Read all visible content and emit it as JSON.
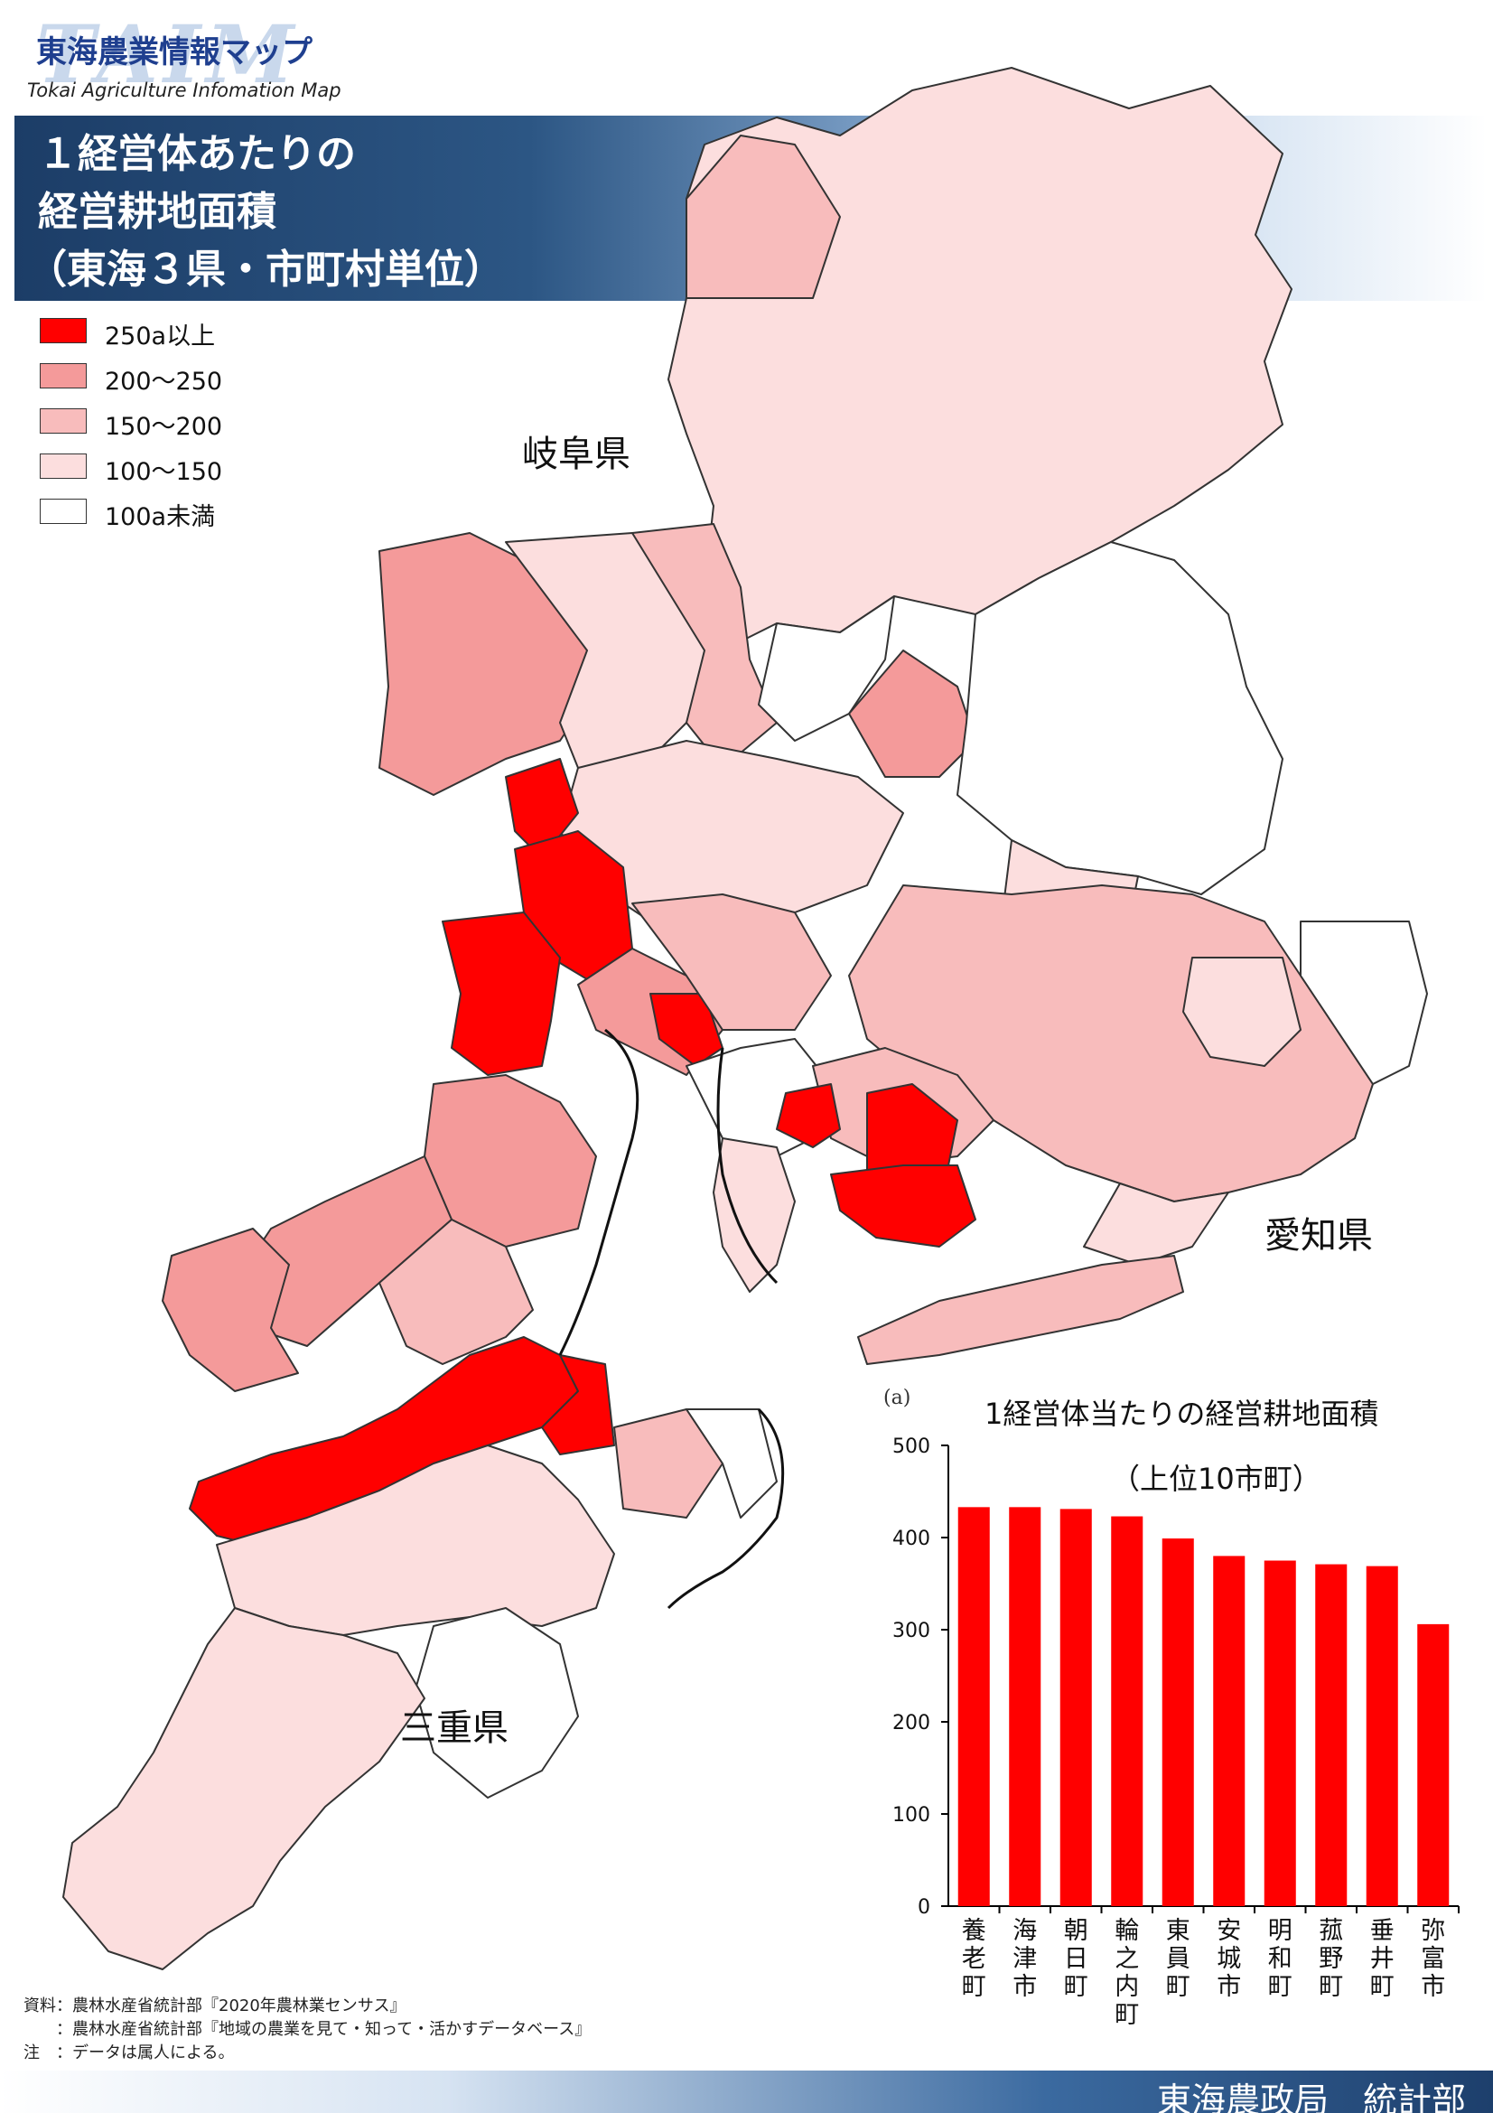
{
  "header": {
    "logo_text": "TAIM",
    "logo_title": "東海農業情報マップ",
    "logo_subtitle": "Tokai Agriculture Infomation Map",
    "title_lines": [
      "１経営体あたりの",
      "経営耕地面積",
      "（東海３県・市町村単位）"
    ]
  },
  "legend": {
    "items": [
      {
        "label": "250a以上",
        "color": "#ff0000"
      },
      {
        "label": "200～250",
        "color": "#f49a9a"
      },
      {
        "label": "150～200",
        "color": "#f8bcbc"
      },
      {
        "label": "100～150",
        "color": "#fcdede"
      },
      {
        "label": "100a未満",
        "color": "#ffffff"
      }
    ]
  },
  "map": {
    "prefectures": [
      "岐阜県",
      "愛知県",
      "三重県"
    ]
  },
  "chart_data": {
    "type": "bar",
    "panel_label": "(a)",
    "title": "1経営体当たりの経営耕地面積",
    "subtitle": "（上位10市町）",
    "categories": [
      "養老町",
      "海津市",
      "朝日町",
      "輪之内町",
      "東員町",
      "安城市",
      "明和町",
      "菰野町",
      "垂井町",
      "弥富市"
    ],
    "values": [
      433,
      433,
      431,
      423,
      399,
      380,
      375,
      371,
      369,
      306
    ],
    "ylim": [
      0,
      500
    ],
    "yticks": [
      0,
      100,
      200,
      300,
      400,
      500
    ],
    "color": "#ff0000",
    "grid": false
  },
  "notes": [
    "資料：農林水産省統計部『2020年農林業センサス』",
    "　　：農林水産省統計部『地域の農業を見て・知って・活かすデータベース』",
    "注　：データは属人による。"
  ],
  "footer": {
    "org": "東海農政局　統計部"
  }
}
